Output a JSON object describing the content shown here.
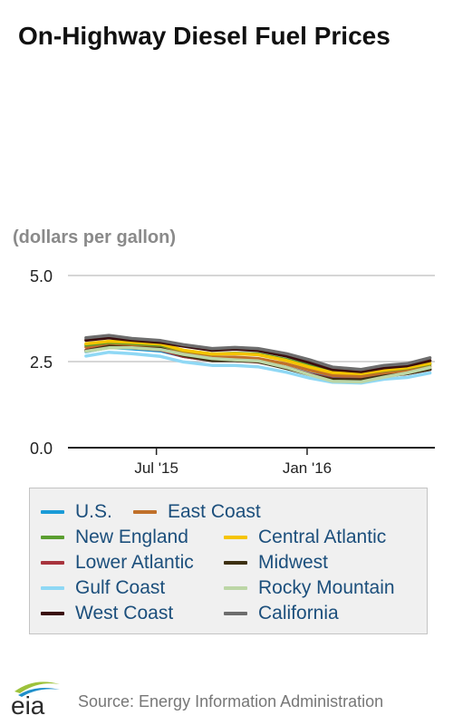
{
  "header": {
    "title": "On-Highway Diesel Fuel Prices",
    "units": "(dollars per gallon)"
  },
  "footer": {
    "logo_text": "eia",
    "source": "Source: Energy Information Administration"
  },
  "colors": {
    "background": "#ffffff",
    "grid": "#c8c8c8",
    "axis": "#222222",
    "legend_bg": "#f0f0f0",
    "legend_text": "#1c4f7c"
  },
  "chart_data": {
    "type": "line",
    "title": "On-Highway Diesel Fuel Prices",
    "ylabel": "(dollars per gallon)",
    "xlabel": "",
    "ylim": [
      0,
      5
    ],
    "yticks": [
      0,
      2.5,
      5
    ],
    "ytick_labels": [
      "0.0",
      "2.5",
      "5.0"
    ],
    "x": [
      "2015-04-06",
      "2015-05-04",
      "2015-06-01",
      "2015-07-06",
      "2015-08-03",
      "2015-09-07",
      "2015-10-05",
      "2015-11-02",
      "2015-12-07",
      "2016-01-04",
      "2016-02-01",
      "2016-03-07",
      "2016-04-04",
      "2016-05-02",
      "2016-05-30"
    ],
    "xticks": [
      "2015-07-01",
      "2016-01-01"
    ],
    "xtick_labels": [
      "Jul '15",
      "Jan '16"
    ],
    "grid": true,
    "legend_position": "bottom",
    "series": [
      {
        "name": "U.S.",
        "color": "#1a9bd7",
        "values": [
          2.79,
          2.91,
          2.87,
          2.81,
          2.65,
          2.53,
          2.53,
          2.5,
          2.33,
          2.15,
          2.02,
          2.0,
          2.1,
          2.15,
          2.27
        ]
      },
      {
        "name": "East Coast",
        "color": "#c0702a",
        "values": [
          2.92,
          3.02,
          2.98,
          2.93,
          2.74,
          2.63,
          2.63,
          2.59,
          2.43,
          2.25,
          2.1,
          2.07,
          2.17,
          2.24,
          2.36
        ]
      },
      {
        "name": "New England",
        "color": "#5a9e2f",
        "values": [
          2.98,
          3.06,
          3.03,
          2.98,
          2.82,
          2.72,
          2.74,
          2.72,
          2.56,
          2.38,
          2.2,
          2.15,
          2.24,
          2.31,
          2.43
        ]
      },
      {
        "name": "Central Atlantic",
        "color": "#f5c400",
        "values": [
          3.02,
          3.09,
          3.06,
          3.01,
          2.83,
          2.72,
          2.73,
          2.7,
          2.53,
          2.34,
          2.18,
          2.15,
          2.25,
          2.32,
          2.45
        ]
      },
      {
        "name": "Lower Atlantic",
        "color": "#a8343d",
        "values": [
          2.83,
          2.94,
          2.9,
          2.84,
          2.65,
          2.53,
          2.53,
          2.49,
          2.33,
          2.14,
          2.0,
          1.98,
          2.08,
          2.15,
          2.27
        ]
      },
      {
        "name": "Midwest",
        "color": "#3d3012",
        "values": [
          2.81,
          2.94,
          2.9,
          2.88,
          2.68,
          2.53,
          2.53,
          2.5,
          2.3,
          2.12,
          1.98,
          1.97,
          2.08,
          2.15,
          2.28
        ]
      },
      {
        "name": "Gulf Coast",
        "color": "#8fd8f5",
        "values": [
          2.66,
          2.77,
          2.73,
          2.65,
          2.49,
          2.39,
          2.39,
          2.35,
          2.19,
          2.02,
          1.9,
          1.88,
          1.99,
          2.04,
          2.17
        ]
      },
      {
        "name": "Rocky Mountain",
        "color": "#bcd6a6",
        "values": [
          2.8,
          2.9,
          2.9,
          2.85,
          2.71,
          2.59,
          2.55,
          2.52,
          2.33,
          2.12,
          1.93,
          1.91,
          2.05,
          2.17,
          2.33
        ]
      },
      {
        "name": "West Coast",
        "color": "#3a0d0d",
        "values": [
          3.12,
          3.19,
          3.12,
          3.06,
          2.95,
          2.83,
          2.86,
          2.82,
          2.66,
          2.47,
          2.27,
          2.21,
          2.32,
          2.38,
          2.53
        ]
      },
      {
        "name": "California",
        "color": "#6d6d6d",
        "values": [
          3.19,
          3.26,
          3.17,
          3.11,
          2.99,
          2.88,
          2.91,
          2.88,
          2.73,
          2.55,
          2.34,
          2.27,
          2.39,
          2.44,
          2.61
        ]
      }
    ]
  }
}
